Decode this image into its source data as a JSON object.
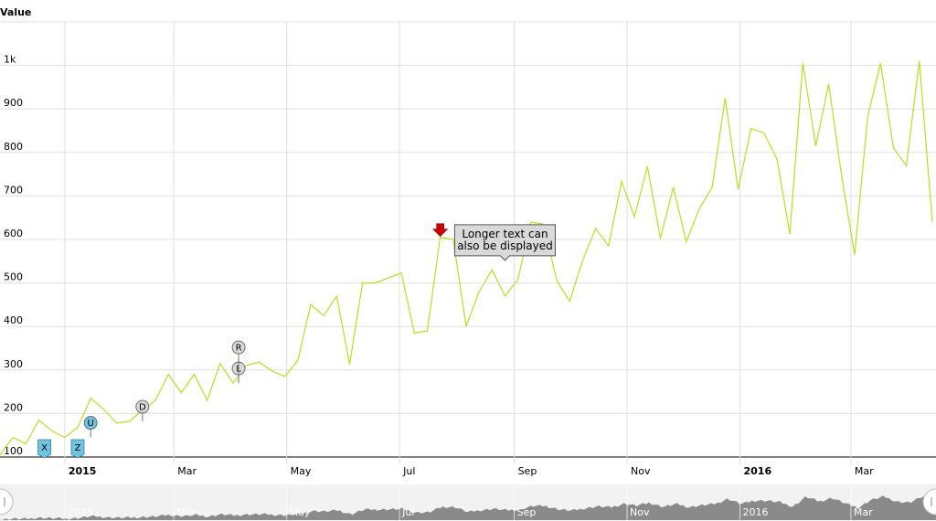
{
  "chart_data": {
    "type": "line",
    "ylabel": "Value",
    "xlim": [
      "2014-11-27",
      "2016-04-16"
    ],
    "ylim": [
      100,
      1100
    ],
    "y_ticks": [
      {
        "value": 100,
        "label": "100"
      },
      {
        "value": 200,
        "label": "200"
      },
      {
        "value": 300,
        "label": "300"
      },
      {
        "value": 400,
        "label": "400"
      },
      {
        "value": 500,
        "label": "500"
      },
      {
        "value": 600,
        "label": "600"
      },
      {
        "value": 700,
        "label": "700"
      },
      {
        "value": 800,
        "label": "800"
      },
      {
        "value": 900,
        "label": "900"
      },
      {
        "value": 1000,
        "label": "1k"
      }
    ],
    "x_ticks": [
      {
        "date": "2015-01-01",
        "label": "2015",
        "bold": true
      },
      {
        "date": "2015-03-01",
        "label": "Mar",
        "bold": false
      },
      {
        "date": "2015-05-01",
        "label": "May",
        "bold": false
      },
      {
        "date": "2015-07-01",
        "label": "Jul",
        "bold": false
      },
      {
        "date": "2015-09-01",
        "label": "Sep",
        "bold": false
      },
      {
        "date": "2015-11-01",
        "label": "Nov",
        "bold": false
      },
      {
        "date": "2016-01-01",
        "label": "2016",
        "bold": true
      },
      {
        "date": "2016-03-01",
        "label": "Mar",
        "bold": false
      }
    ],
    "x": [
      "2014-11-27",
      "2014-12-04",
      "2014-12-11",
      "2014-12-18",
      "2014-12-25",
      "2015-01-01",
      "2015-01-08",
      "2015-01-15",
      "2015-01-22",
      "2015-01-29",
      "2015-02-05",
      "2015-02-12",
      "2015-02-19",
      "2015-02-26",
      "2015-03-05",
      "2015-03-12",
      "2015-03-19",
      "2015-03-26",
      "2015-04-02",
      "2015-04-09",
      "2015-04-16",
      "2015-04-23",
      "2015-04-30",
      "2015-05-07",
      "2015-05-14",
      "2015-05-21",
      "2015-05-28",
      "2015-06-04",
      "2015-06-11",
      "2015-06-18",
      "2015-06-25",
      "2015-07-02",
      "2015-07-09",
      "2015-07-16",
      "2015-07-23",
      "2015-07-30",
      "2015-08-06",
      "2015-08-13",
      "2015-08-20",
      "2015-08-27",
      "2015-09-03",
      "2015-09-10",
      "2015-09-17",
      "2015-09-24",
      "2015-10-01",
      "2015-10-08",
      "2015-10-15",
      "2015-10-22",
      "2015-10-29",
      "2015-11-05",
      "2015-11-12",
      "2015-11-19",
      "2015-11-26",
      "2015-12-03",
      "2015-12-10",
      "2015-12-17",
      "2015-12-24",
      "2015-12-31",
      "2016-01-07",
      "2016-01-14",
      "2016-01-21",
      "2016-01-28",
      "2016-02-04",
      "2016-02-11",
      "2016-02-18",
      "2016-02-25",
      "2016-03-03",
      "2016-03-10",
      "2016-03-17",
      "2016-03-24",
      "2016-03-31",
      "2016-04-07",
      "2016-04-14"
    ],
    "series": [
      {
        "color": "#b7e021",
        "values": [
          105,
          145,
          130,
          185,
          160,
          145,
          168,
          235,
          210,
          178,
          182,
          208,
          230,
          290,
          248,
          290,
          230,
          315,
          270,
          310,
          318,
          298,
          285,
          322,
          450,
          425,
          470,
          313,
          500,
          500,
          512,
          523,
          385,
          390,
          605,
          600,
          400,
          480,
          530,
          470,
          508,
          640,
          635,
          505,
          458,
          552,
          625,
          585,
          733,
          652,
          768,
          602,
          720,
          595,
          670,
          720,
          925,
          715,
          855,
          845,
          785,
          612,
          1005,
          815,
          958,
          745,
          565,
          880,
          1005,
          810,
          770,
          1010,
          640
        ]
      }
    ],
    "events": [
      {
        "date": "2014-12-21",
        "y": 110,
        "type": "flag",
        "letter": "X"
      },
      {
        "date": "2015-01-08",
        "y": 110,
        "type": "flag",
        "letter": "Z"
      },
      {
        "date": "2015-01-15",
        "y": 145,
        "type": "pin",
        "letter": "U"
      },
      {
        "date": "2015-02-12",
        "y": 182,
        "type": "pin",
        "letter": "D"
      },
      {
        "date": "2015-04-05",
        "y": 270,
        "type": "pin",
        "letter": "L"
      },
      {
        "date": "2015-04-05",
        "y": 270,
        "type": "pin2",
        "letter": "R"
      },
      {
        "date": "2015-07-23",
        "y": 605,
        "type": "arrow",
        "letter": ""
      }
    ],
    "annotation": {
      "date": "2015-08-27",
      "y": 470,
      "lines": [
        "Longer text can",
        "also be displayed"
      ]
    },
    "scrollbar_labels": [
      {
        "date": "2015-01-01",
        "label": "2015"
      },
      {
        "date": "2015-03-01",
        "label": "Mar"
      },
      {
        "date": "2015-05-01",
        "label": "May"
      },
      {
        "date": "2015-07-01",
        "label": "Jul"
      },
      {
        "date": "2015-09-01",
        "label": "Sep"
      },
      {
        "date": "2015-11-01",
        "label": "Nov"
      },
      {
        "date": "2016-01-01",
        "label": "2016"
      },
      {
        "date": "2016-03-01",
        "label": "Mar"
      }
    ]
  }
}
